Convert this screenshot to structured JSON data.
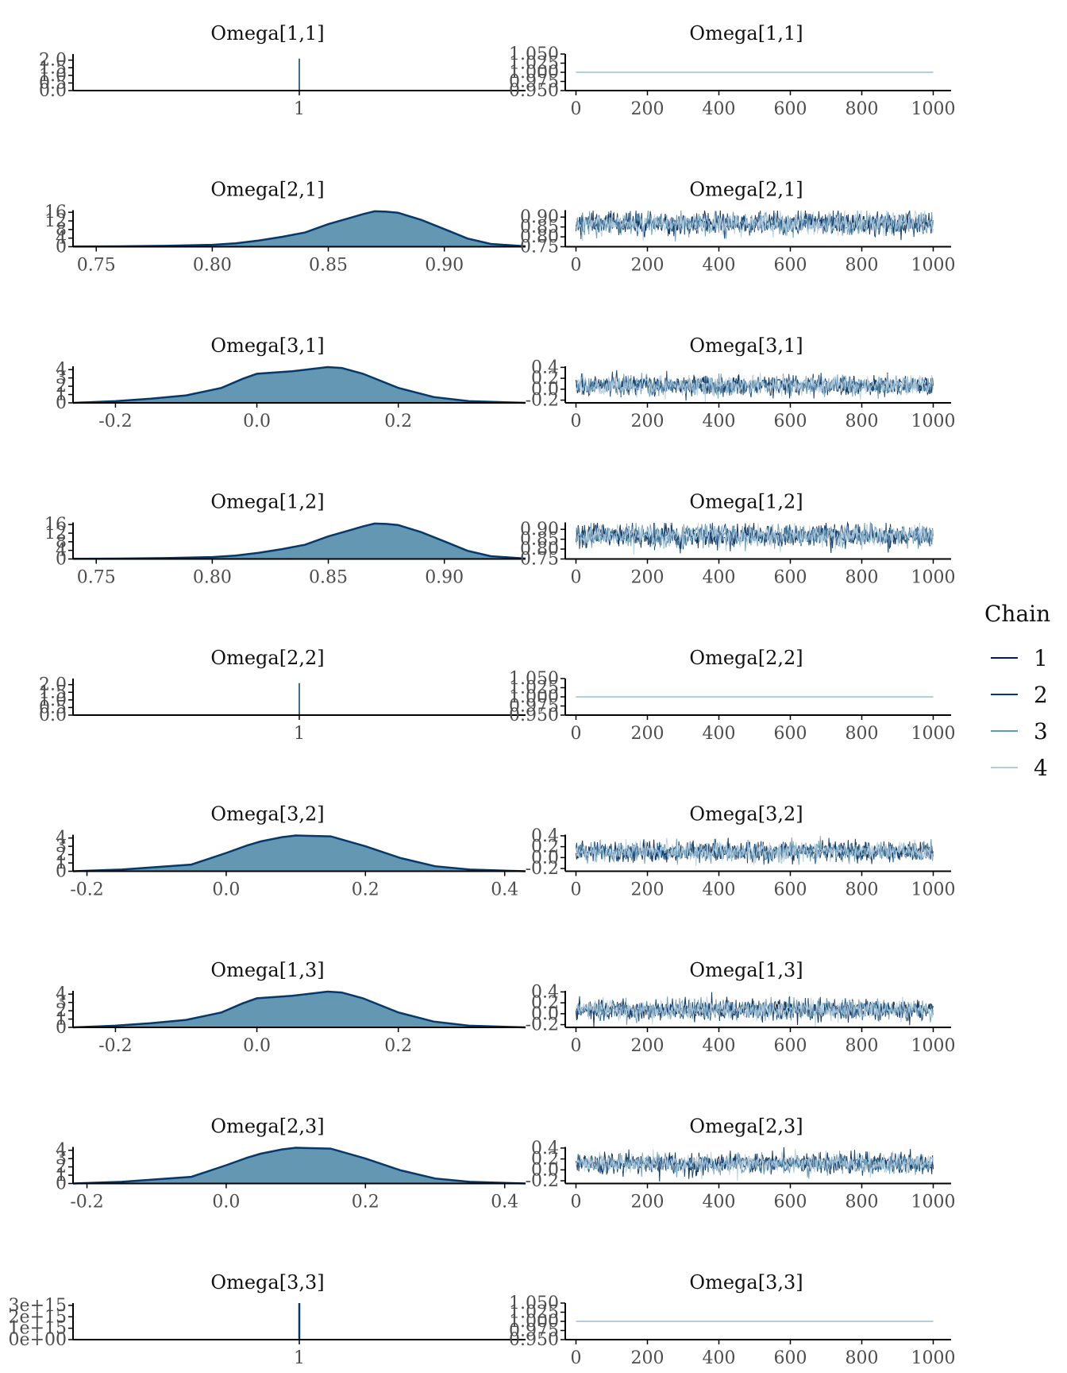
{
  "legend": {
    "title": "Chain",
    "items": [
      {
        "label": "1",
        "color": "#011f4b"
      },
      {
        "label": "2",
        "color": "#03396c"
      },
      {
        "label": "3",
        "color": "#6497b1"
      },
      {
        "label": "4",
        "color": "#b3cde0"
      }
    ]
  },
  "colors": {
    "density_fill": "#6497b1",
    "density_line": "#03396c"
  },
  "chart_data": [
    {
      "type": "area",
      "panel": "density",
      "title": "Omega[1,1]",
      "degenerate": true,
      "xlim": [
        0.4,
        1.6
      ],
      "xticks": [
        1
      ],
      "xtick_labels": [
        "1"
      ],
      "ylim": [
        0,
        2.4
      ],
      "yticks": [
        0,
        0.5,
        1.0,
        1.5,
        2.0
      ],
      "ytick_labels": [
        "0.0",
        "0.5",
        "1.0",
        "1.5",
        "2.0"
      ],
      "spike_at": 1,
      "spike_height": 2.1
    },
    {
      "type": "line",
      "panel": "trace",
      "title": "Omega[1,1]",
      "constant": 1.0,
      "xlim": [
        -30,
        1050
      ],
      "xticks": [
        0,
        200,
        400,
        600,
        800,
        1000
      ],
      "xtick_labels": [
        "0",
        "200",
        "400",
        "600",
        "800",
        "1000"
      ],
      "ylim": [
        0.95,
        1.05
      ],
      "yticks": [
        0.95,
        0.975,
        1.0,
        1.025,
        1.05
      ],
      "ytick_labels": [
        "0.950",
        "0.975",
        "1.000",
        "1.025",
        "1.050"
      ]
    },
    {
      "type": "area",
      "panel": "density",
      "title": "Omega[2,1]",
      "xlim": [
        0.74,
        0.935
      ],
      "xticks": [
        0.75,
        0.8,
        0.85,
        0.9
      ],
      "xtick_labels": [
        "0.75",
        "0.80",
        "0.85",
        "0.90"
      ],
      "ylim": [
        0,
        17
      ],
      "yticks": [
        0,
        4,
        8,
        12,
        16
      ],
      "ytick_labels": [
        "0",
        "4",
        "8",
        "12",
        "16"
      ],
      "x": [
        0.74,
        0.76,
        0.78,
        0.8,
        0.81,
        0.82,
        0.83,
        0.84,
        0.85,
        0.86,
        0.865,
        0.87,
        0.875,
        0.88,
        0.89,
        0.9,
        0.91,
        0.92,
        0.935
      ],
      "y": [
        0.1,
        0.2,
        0.4,
        0.9,
        1.6,
        2.9,
        4.6,
        6.6,
        10.5,
        13.6,
        15.2,
        16.5,
        16.3,
        15.8,
        12.5,
        8.2,
        3.8,
        1.3,
        0.2
      ]
    },
    {
      "type": "line",
      "panel": "trace",
      "title": "Omega[2,1]",
      "mean": 0.868,
      "sd": 0.028,
      "xlim": [
        -30,
        1050
      ],
      "xticks": [
        0,
        200,
        400,
        600,
        800,
        1000
      ],
      "xtick_labels": [
        "0",
        "200",
        "400",
        "600",
        "800",
        "1000"
      ],
      "ylim": [
        0.75,
        0.935
      ],
      "yticks": [
        0.75,
        0.8,
        0.85,
        0.9
      ],
      "ytick_labels": [
        "0.75",
        "0.80",
        "0.85",
        "0.90"
      ]
    },
    {
      "type": "area",
      "panel": "density",
      "title": "Omega[3,1]",
      "xlim": [
        -0.26,
        0.38
      ],
      "xticks": [
        -0.2,
        0.0,
        0.2
      ],
      "xtick_labels": [
        "-0.2",
        "0.0",
        "0.2"
      ],
      "ylim": [
        0,
        4.4
      ],
      "yticks": [
        0,
        1,
        2,
        3,
        4
      ],
      "ytick_labels": [
        "0",
        "1",
        "2",
        "3",
        "4"
      ],
      "x": [
        -0.26,
        -0.2,
        -0.15,
        -0.1,
        -0.05,
        -0.02,
        0.0,
        0.05,
        0.1,
        0.12,
        0.15,
        0.2,
        0.25,
        0.3,
        0.38
      ],
      "y": [
        0.0,
        0.2,
        0.5,
        0.9,
        1.8,
        2.9,
        3.5,
        3.8,
        4.3,
        4.2,
        3.5,
        1.8,
        0.7,
        0.2,
        0.0
      ]
    },
    {
      "type": "line",
      "panel": "trace",
      "title": "Omega[3,1]",
      "mean": 0.07,
      "sd": 0.09,
      "xlim": [
        -30,
        1050
      ],
      "xticks": [
        0,
        200,
        400,
        600,
        800,
        1000
      ],
      "xtick_labels": [
        "0",
        "200",
        "400",
        "600",
        "800",
        "1000"
      ],
      "ylim": [
        -0.25,
        0.42
      ],
      "yticks": [
        -0.2,
        0.0,
        0.2,
        0.4
      ],
      "ytick_labels": [
        "-0.2",
        "0.0",
        "0.2",
        "0.4"
      ]
    },
    {
      "type": "area",
      "panel": "density",
      "title": "Omega[1,2]",
      "xlim": [
        0.74,
        0.935
      ],
      "xticks": [
        0.75,
        0.8,
        0.85,
        0.9
      ],
      "xtick_labels": [
        "0.75",
        "0.80",
        "0.85",
        "0.90"
      ],
      "ylim": [
        0,
        17
      ],
      "yticks": [
        0,
        4,
        8,
        12,
        16
      ],
      "ytick_labels": [
        "0",
        "4",
        "8",
        "12",
        "16"
      ],
      "x": [
        0.74,
        0.76,
        0.78,
        0.8,
        0.81,
        0.82,
        0.83,
        0.84,
        0.85,
        0.86,
        0.865,
        0.87,
        0.875,
        0.88,
        0.89,
        0.9,
        0.91,
        0.92,
        0.935
      ],
      "y": [
        0.1,
        0.2,
        0.4,
        0.9,
        1.6,
        2.9,
        4.6,
        6.6,
        10.5,
        13.6,
        15.2,
        16.5,
        16.3,
        15.8,
        12.5,
        8.2,
        3.8,
        1.3,
        0.2
      ]
    },
    {
      "type": "line",
      "panel": "trace",
      "title": "Omega[1,2]",
      "mean": 0.868,
      "sd": 0.028,
      "xlim": [
        -30,
        1050
      ],
      "xticks": [
        0,
        200,
        400,
        600,
        800,
        1000
      ],
      "xtick_labels": [
        "0",
        "200",
        "400",
        "600",
        "800",
        "1000"
      ],
      "ylim": [
        0.75,
        0.935
      ],
      "yticks": [
        0.75,
        0.8,
        0.85,
        0.9
      ],
      "ytick_labels": [
        "0.75",
        "0.80",
        "0.85",
        "0.90"
      ]
    },
    {
      "type": "area",
      "panel": "density",
      "title": "Omega[2,2]",
      "degenerate": true,
      "xlim": [
        0.4,
        1.6
      ],
      "xticks": [
        1
      ],
      "xtick_labels": [
        "1"
      ],
      "ylim": [
        0,
        2.4
      ],
      "yticks": [
        0,
        0.5,
        1.0,
        1.5,
        2.0
      ],
      "ytick_labels": [
        "0.0",
        "0.5",
        "1.0",
        "1.5",
        "2.0"
      ],
      "spike_at": 1,
      "spike_height": 2.1
    },
    {
      "type": "line",
      "panel": "trace",
      "title": "Omega[2,2]",
      "constant": 1.0,
      "xlim": [
        -30,
        1050
      ],
      "xticks": [
        0,
        200,
        400,
        600,
        800,
        1000
      ],
      "xtick_labels": [
        "0",
        "200",
        "400",
        "600",
        "800",
        "1000"
      ],
      "ylim": [
        0.95,
        1.05
      ],
      "yticks": [
        0.95,
        0.975,
        1.0,
        1.025,
        1.05
      ],
      "ytick_labels": [
        "0.950",
        "0.975",
        "1.000",
        "1.025",
        "1.050"
      ]
    },
    {
      "type": "area",
      "panel": "density",
      "title": "Omega[3,2]",
      "xlim": [
        -0.22,
        0.43
      ],
      "xticks": [
        -0.2,
        0.0,
        0.2,
        0.4
      ],
      "xtick_labels": [
        "-0.2",
        "0.0",
        "0.2",
        "0.4"
      ],
      "ylim": [
        0,
        4.4
      ],
      "yticks": [
        0,
        1,
        2,
        3,
        4
      ],
      "ytick_labels": [
        "0",
        "1",
        "2",
        "3",
        "4"
      ],
      "x": [
        -0.22,
        -0.15,
        -0.1,
        -0.05,
        0.0,
        0.03,
        0.05,
        0.08,
        0.1,
        0.15,
        0.2,
        0.25,
        0.3,
        0.35,
        0.43
      ],
      "y": [
        0.0,
        0.2,
        0.5,
        0.8,
        2.2,
        3.1,
        3.6,
        4.1,
        4.3,
        4.2,
        3.0,
        1.6,
        0.6,
        0.2,
        0.0
      ]
    },
    {
      "type": "line",
      "panel": "trace",
      "title": "Omega[3,2]",
      "mean": 0.11,
      "sd": 0.09,
      "xlim": [
        -30,
        1050
      ],
      "xticks": [
        0,
        200,
        400,
        600,
        800,
        1000
      ],
      "xtick_labels": [
        "0",
        "200",
        "400",
        "600",
        "800",
        "1000"
      ],
      "ylim": [
        -0.25,
        0.42
      ],
      "yticks": [
        -0.2,
        0.0,
        0.2,
        0.4
      ],
      "ytick_labels": [
        "-0.2",
        "0.0",
        "0.2",
        "0.4"
      ]
    },
    {
      "type": "area",
      "panel": "density",
      "title": "Omega[1,3]",
      "xlim": [
        -0.26,
        0.38
      ],
      "xticks": [
        -0.2,
        0.0,
        0.2
      ],
      "xtick_labels": [
        "-0.2",
        "0.0",
        "0.2"
      ],
      "ylim": [
        0,
        4.4
      ],
      "yticks": [
        0,
        1,
        2,
        3,
        4
      ],
      "ytick_labels": [
        "0",
        "1",
        "2",
        "3",
        "4"
      ],
      "x": [
        -0.26,
        -0.2,
        -0.15,
        -0.1,
        -0.05,
        -0.02,
        0.0,
        0.05,
        0.1,
        0.12,
        0.15,
        0.2,
        0.25,
        0.3,
        0.38
      ],
      "y": [
        0.0,
        0.2,
        0.5,
        0.9,
        1.8,
        2.9,
        3.5,
        3.8,
        4.3,
        4.2,
        3.5,
        1.8,
        0.7,
        0.2,
        0.0
      ]
    },
    {
      "type": "line",
      "panel": "trace",
      "title": "Omega[1,3]",
      "mean": 0.07,
      "sd": 0.09,
      "xlim": [
        -30,
        1050
      ],
      "xticks": [
        0,
        200,
        400,
        600,
        800,
        1000
      ],
      "xtick_labels": [
        "0",
        "200",
        "400",
        "600",
        "800",
        "1000"
      ],
      "ylim": [
        -0.25,
        0.42
      ],
      "yticks": [
        -0.2,
        0.0,
        0.2,
        0.4
      ],
      "ytick_labels": [
        "-0.2",
        "0.0",
        "0.2",
        "0.4"
      ]
    },
    {
      "type": "area",
      "panel": "density",
      "title": "Omega[2,3]",
      "xlim": [
        -0.22,
        0.43
      ],
      "xticks": [
        -0.2,
        0.0,
        0.2,
        0.4
      ],
      "xtick_labels": [
        "-0.2",
        "0.0",
        "0.2",
        "0.4"
      ],
      "ylim": [
        0,
        4.4
      ],
      "yticks": [
        0,
        1,
        2,
        3,
        4
      ],
      "ytick_labels": [
        "0",
        "1",
        "2",
        "3",
        "4"
      ],
      "x": [
        -0.22,
        -0.15,
        -0.1,
        -0.05,
        0.0,
        0.03,
        0.05,
        0.08,
        0.1,
        0.15,
        0.2,
        0.25,
        0.3,
        0.35,
        0.43
      ],
      "y": [
        0.0,
        0.2,
        0.5,
        0.8,
        2.2,
        3.1,
        3.6,
        4.1,
        4.3,
        4.2,
        3.0,
        1.6,
        0.6,
        0.2,
        0.0
      ]
    },
    {
      "type": "line",
      "panel": "trace",
      "title": "Omega[2,3]",
      "mean": 0.11,
      "sd": 0.09,
      "xlim": [
        -30,
        1050
      ],
      "xticks": [
        0,
        200,
        400,
        600,
        800,
        1000
      ],
      "xtick_labels": [
        "0",
        "200",
        "400",
        "600",
        "800",
        "1000"
      ],
      "ylim": [
        -0.25,
        0.42
      ],
      "yticks": [
        -0.2,
        0.0,
        0.2,
        0.4
      ],
      "ytick_labels": [
        "-0.2",
        "0.0",
        "0.2",
        "0.4"
      ]
    },
    {
      "type": "area",
      "panel": "density",
      "title": "Omega[3,3]",
      "degenerate": true,
      "xlim": [
        0.4,
        1.6
      ],
      "xticks": [
        1
      ],
      "xtick_labels": [
        "1"
      ],
      "ylim": [
        0,
        3200000000000000.0
      ],
      "yticks": [
        0,
        1000000000000000.0,
        2000000000000000.0,
        3000000000000000.0
      ],
      "ytick_labels": [
        "0e+00",
        "1e+15",
        "2e+15",
        "3e+15"
      ],
      "spike_at": 1,
      "spike_height": 3200000000000000.0
    },
    {
      "type": "line",
      "panel": "trace",
      "title": "Omega[3,3]",
      "constant": 1.0,
      "xlim": [
        -30,
        1050
      ],
      "xticks": [
        0,
        200,
        400,
        600,
        800,
        1000
      ],
      "xtick_labels": [
        "0",
        "200",
        "400",
        "600",
        "800",
        "1000"
      ],
      "ylim": [
        0.95,
        1.05
      ],
      "yticks": [
        0.95,
        0.975,
        1.0,
        1.025,
        1.05
      ],
      "ytick_labels": [
        "0.950",
        "0.975",
        "1.000",
        "1.025",
        "1.050"
      ]
    }
  ]
}
